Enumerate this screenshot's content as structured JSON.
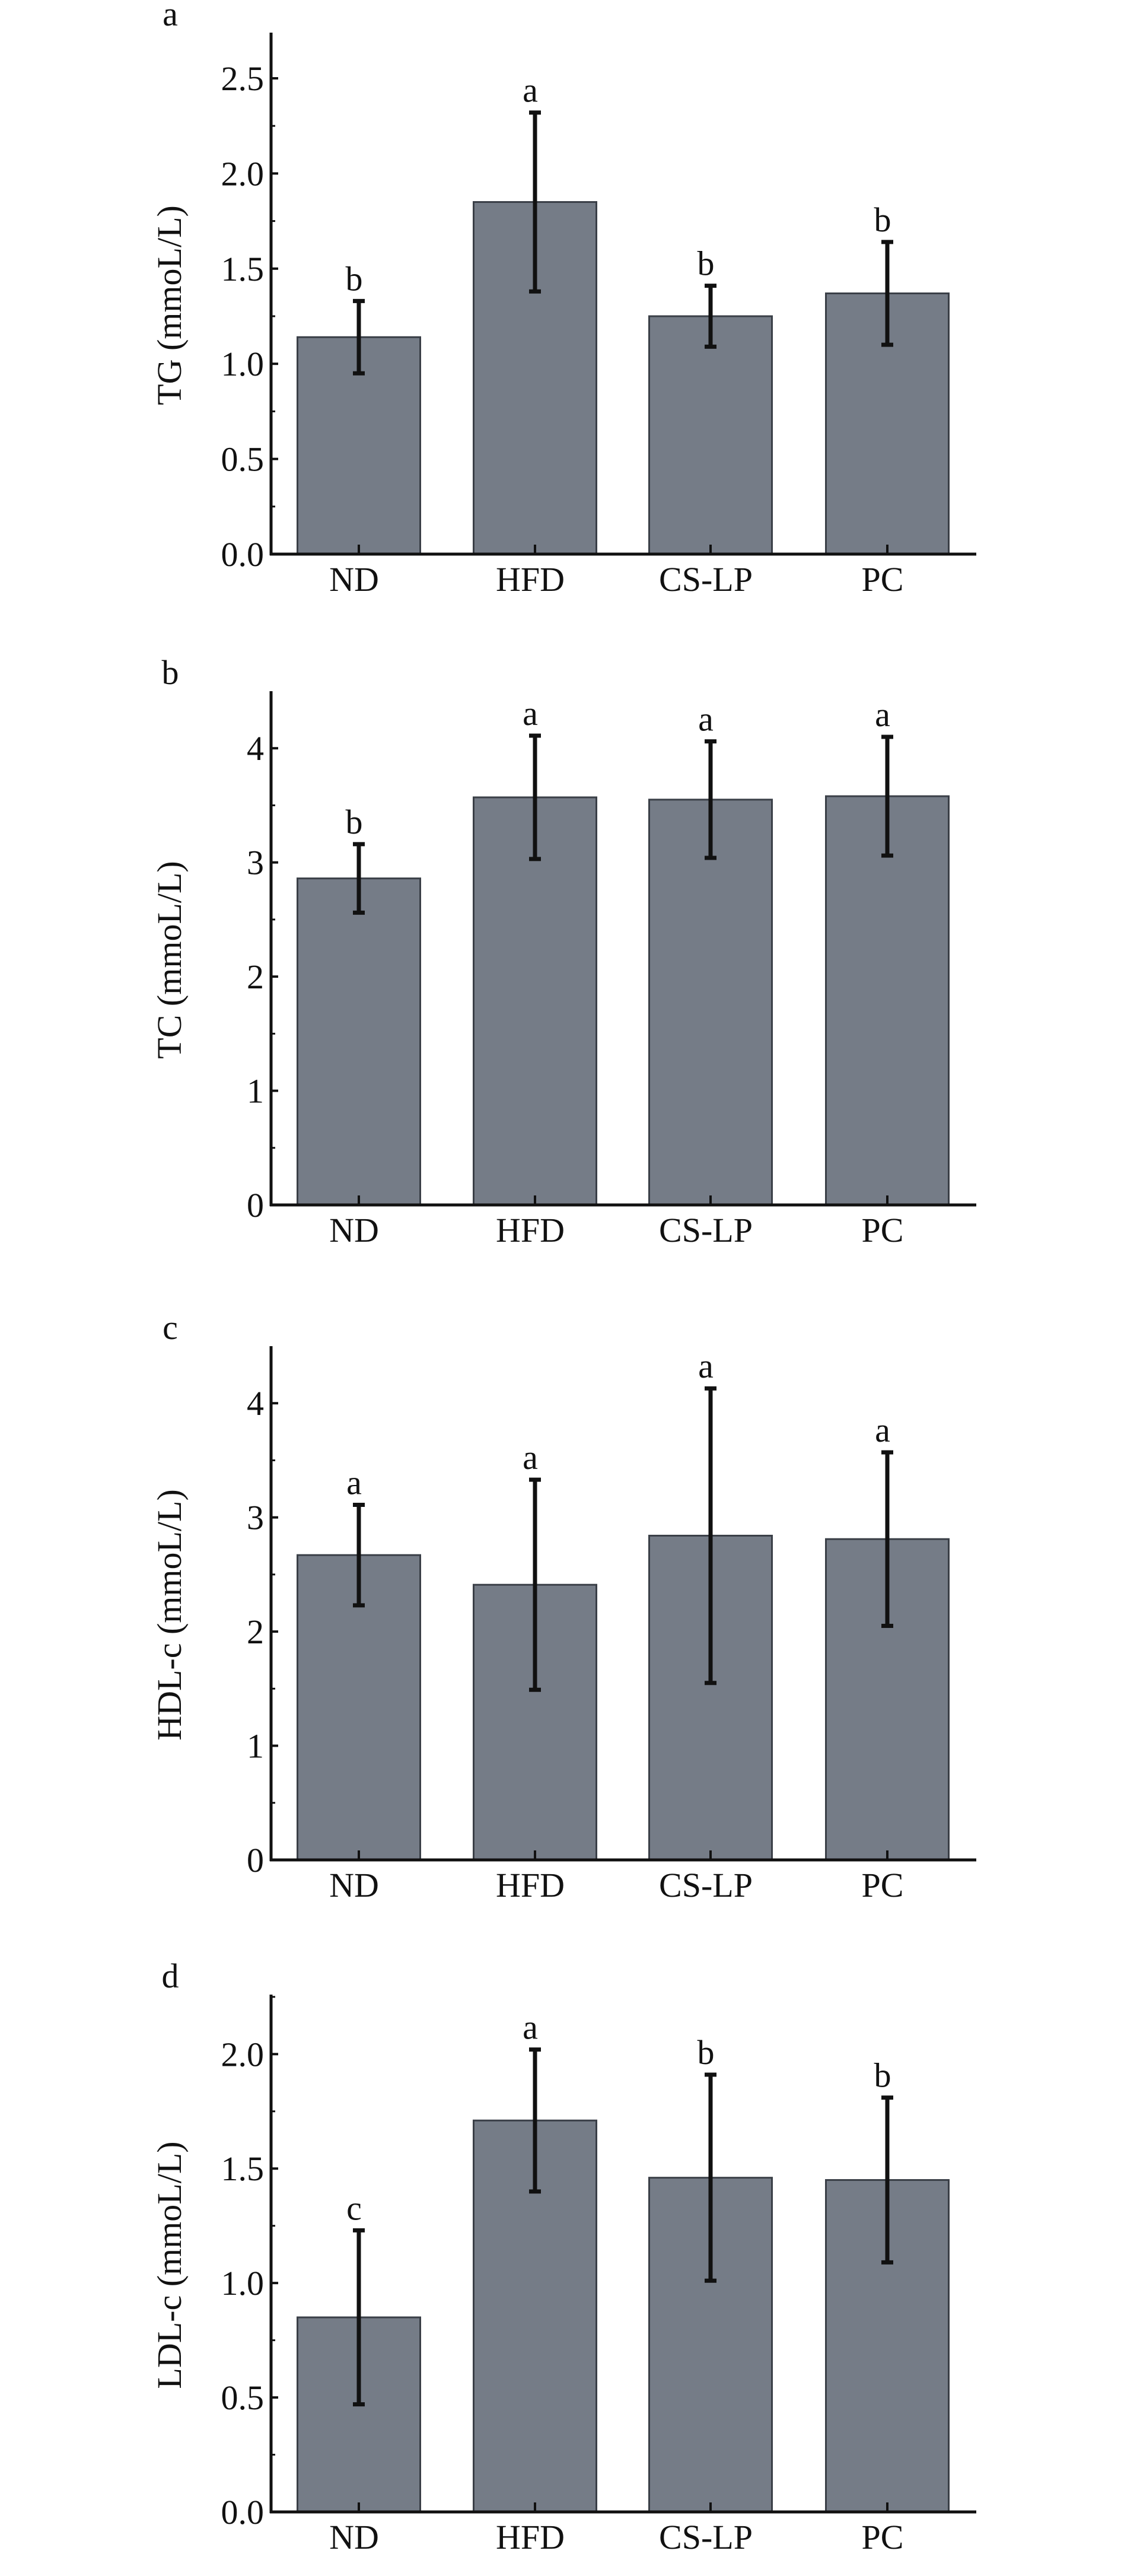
{
  "chart_data": [
    {
      "type": "bar",
      "panel": "a",
      "ylabel": "TG (mmoL/L)",
      "categories": [
        "ND",
        "HFD",
        "CS-LP",
        "PC"
      ],
      "values": [
        1.14,
        1.85,
        1.25,
        1.37
      ],
      "errors": [
        0.19,
        0.47,
        0.16,
        0.27
      ],
      "significance": [
        "b",
        "a",
        "b",
        "b"
      ],
      "yticks": [
        "0.0",
        "0.5",
        "1.0",
        "1.5",
        "2.0",
        "2.5"
      ],
      "ylim": [
        0,
        2.74
      ],
      "bar_color": "#757c87"
    },
    {
      "type": "bar",
      "panel": "b",
      "ylabel": "TC (mmoL/L)",
      "categories": [
        "ND",
        "HFD",
        "CS-LP",
        "PC"
      ],
      "values": [
        2.86,
        3.57,
        3.55,
        3.58
      ],
      "errors": [
        0.3,
        0.54,
        0.51,
        0.52
      ],
      "significance": [
        "b",
        "a",
        "a",
        "a"
      ],
      "yticks": [
        "0",
        "1",
        "2",
        "3",
        "4"
      ],
      "ylim": [
        0,
        4.5
      ],
      "bar_color": "#757c87"
    },
    {
      "type": "bar",
      "panel": "c",
      "ylabel": "HDL-c (mmoL/L)",
      "categories": [
        "ND",
        "HFD",
        "CS-LP",
        "PC"
      ],
      "values": [
        2.67,
        2.41,
        2.84,
        2.81
      ],
      "errors": [
        0.44,
        0.92,
        1.29,
        0.76
      ],
      "significance": [
        "a",
        "a",
        "a",
        "a"
      ],
      "yticks": [
        "0",
        "1",
        "2",
        "3",
        "4"
      ],
      "ylim": [
        0,
        4.5
      ],
      "bar_color": "#757c87"
    },
    {
      "type": "bar",
      "panel": "d",
      "ylabel": "LDL-c (mmoL/L)",
      "categories": [
        "ND",
        "HFD",
        "CS-LP",
        "PC"
      ],
      "values": [
        0.85,
        1.71,
        1.46,
        1.45
      ],
      "errors": [
        0.38,
        0.31,
        0.45,
        0.36
      ],
      "significance": [
        "c",
        "a",
        "b",
        "b"
      ],
      "yticks": [
        "0.0",
        "0.5",
        "1.0",
        "1.5",
        "2.0"
      ],
      "ylim": [
        0,
        2.26
      ],
      "bar_color": "#757c87"
    }
  ]
}
